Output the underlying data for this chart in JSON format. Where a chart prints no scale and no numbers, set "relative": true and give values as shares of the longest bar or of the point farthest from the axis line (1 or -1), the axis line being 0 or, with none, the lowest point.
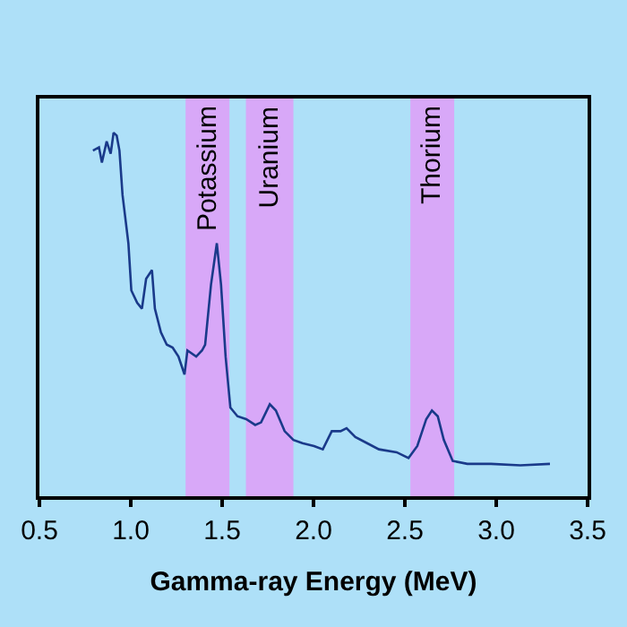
{
  "chart_data": {
    "type": "line",
    "xlabel": "Gamma-ray Energy (MeV)",
    "relative": true,
    "xlim": [
      0.5,
      3.5
    ],
    "xticks": [
      {
        "value": 0.5,
        "label": "0.5"
      },
      {
        "value": 1.0,
        "label": "1.0"
      },
      {
        "value": 1.5,
        "label": "1.5"
      },
      {
        "value": 2.0,
        "label": "2.0"
      },
      {
        "value": 2.5,
        "label": "2.5"
      },
      {
        "value": 3.0,
        "label": "3.0"
      },
      {
        "value": 3.5,
        "label": "3.5"
      }
    ],
    "grid": false,
    "marker": "none",
    "line_style": "solid",
    "tick_labels": "x",
    "series": [
      {
        "color": "#1a3a8a",
        "x": [
          0.793,
          0.826,
          0.842,
          0.868,
          0.89,
          0.906,
          0.923,
          0.938,
          0.955,
          0.987,
          1.003,
          1.035,
          1.061,
          1.084,
          1.116,
          1.132,
          1.165,
          1.197,
          1.229,
          1.261,
          1.294,
          1.31,
          1.358,
          1.39,
          1.407,
          1.439,
          1.471,
          1.494,
          1.519,
          1.545,
          1.584,
          1.632,
          1.681,
          1.713,
          1.761,
          1.794,
          1.842,
          1.89,
          1.939,
          2.003,
          2.051,
          2.1,
          2.148,
          2.181,
          2.229,
          2.293,
          2.358,
          2.455,
          2.52,
          2.568,
          2.617,
          2.648,
          2.68,
          2.713,
          2.762,
          2.842,
          2.971,
          3.132,
          3.294
        ],
        "values": [
          0.951,
          0.96,
          0.918,
          0.976,
          0.942,
          1.0,
          0.992,
          0.951,
          0.828,
          0.696,
          0.566,
          0.532,
          0.516,
          0.598,
          0.622,
          0.516,
          0.451,
          0.417,
          0.409,
          0.384,
          0.335,
          0.401,
          0.384,
          0.401,
          0.417,
          0.582,
          0.696,
          0.582,
          0.384,
          0.244,
          0.22,
          0.212,
          0.196,
          0.203,
          0.253,
          0.236,
          0.179,
          0.155,
          0.146,
          0.138,
          0.129,
          0.179,
          0.179,
          0.187,
          0.163,
          0.146,
          0.129,
          0.121,
          0.105,
          0.138,
          0.212,
          0.236,
          0.22,
          0.155,
          0.097,
          0.089,
          0.089,
          0.085,
          0.089
        ]
      }
    ],
    "bands": [
      {
        "axis": "x",
        "from": 1.3,
        "to": 1.54,
        "label": "Potassium",
        "color": "#d8a8f8"
      },
      {
        "axis": "x",
        "from": 1.63,
        "to": 1.89,
        "label": "Uranium",
        "color": "#d8a8f8"
      },
      {
        "axis": "x",
        "from": 2.53,
        "to": 2.77,
        "label": "Thorium",
        "color": "#d8a8f8"
      }
    ]
  }
}
